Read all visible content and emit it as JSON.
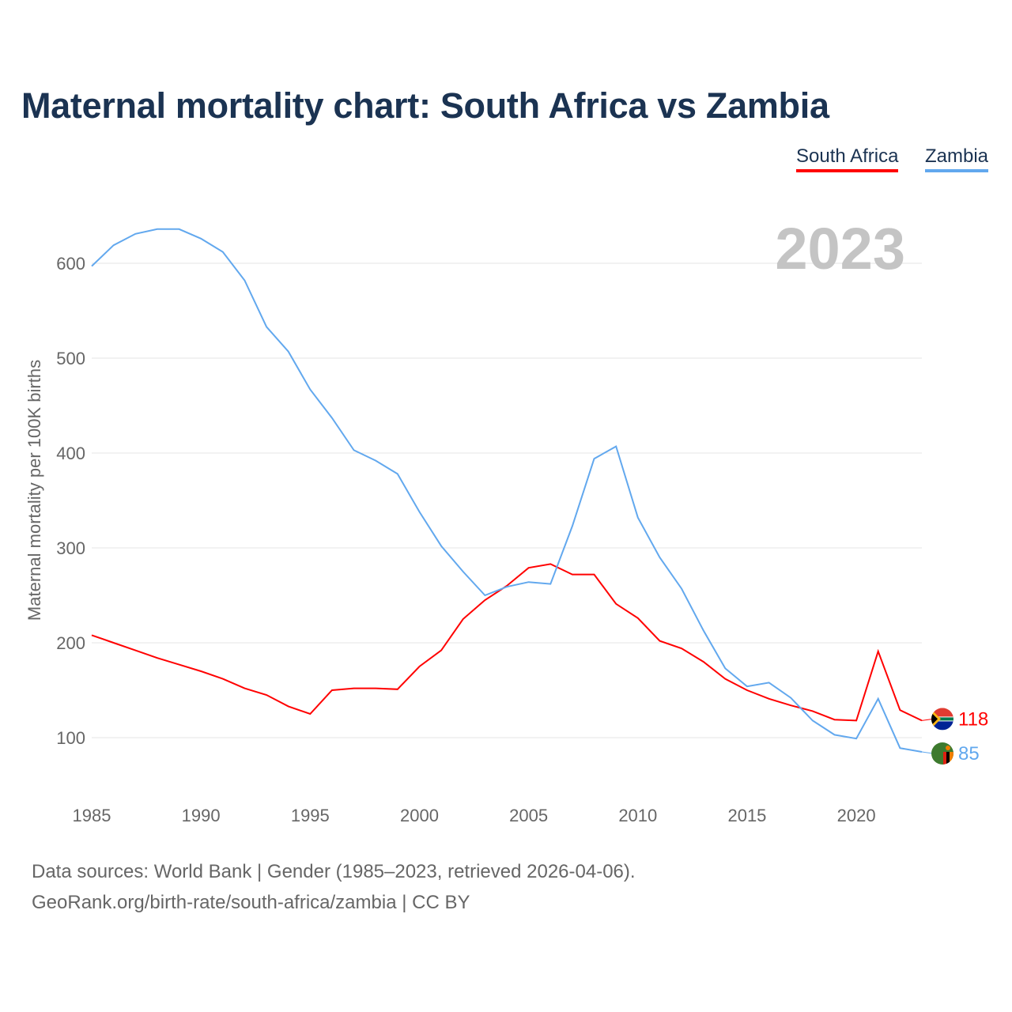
{
  "chart_data": {
    "type": "line",
    "title": "Maternal mortality chart: South Africa vs Zambia",
    "ylabel": "Maternal mortality per 100K births",
    "xlabel": "",
    "current_year": "2023",
    "xlim": [
      1985,
      2023
    ],
    "ylim": [
      50,
      650
    ],
    "grid": true,
    "legend_position": "top-right",
    "x_ticks": [
      "1985",
      "1990",
      "1995",
      "2000",
      "2005",
      "2010",
      "2015",
      "2020"
    ],
    "y_ticks": [
      "100",
      "200",
      "300",
      "400",
      "500",
      "600"
    ],
    "x": [
      1985,
      1986,
      1987,
      1988,
      1989,
      1990,
      1991,
      1992,
      1993,
      1994,
      1995,
      1996,
      1997,
      1998,
      1999,
      2000,
      2001,
      2002,
      2003,
      2004,
      2005,
      2006,
      2007,
      2008,
      2009,
      2010,
      2011,
      2012,
      2013,
      2014,
      2015,
      2016,
      2017,
      2018,
      2019,
      2020,
      2021,
      2022,
      2023
    ],
    "series": [
      {
        "name": "South Africa",
        "color": "#ff0000",
        "end_label": "118",
        "values": [
          208,
          200,
          192,
          184,
          177,
          170,
          162,
          152,
          145,
          133,
          125,
          150,
          152,
          152,
          151,
          175,
          192,
          225,
          245,
          260,
          279,
          283,
          272,
          272,
          241,
          226,
          202,
          194,
          180,
          162,
          150,
          141,
          134,
          128,
          119,
          118,
          191,
          129,
          118
        ]
      },
      {
        "name": "Zambia",
        "color": "#62a8ee",
        "end_label": "85",
        "values": [
          597,
          619,
          631,
          636,
          636,
          626,
          612,
          582,
          533,
          507,
          467,
          437,
          403,
          392,
          378,
          338,
          302,
          275,
          250,
          259,
          264,
          262,
          323,
          394,
          407,
          332,
          290,
          257,
          213,
          173,
          154,
          158,
          142,
          118,
          103,
          99,
          141,
          89,
          85
        ]
      }
    ]
  },
  "footer": {
    "sources": "Data sources: World Bank | Gender (1985–2023, retrieved 2026-04-06).",
    "url": "GeoRank.org/birth-rate/south-africa/zambia | CC BY"
  }
}
